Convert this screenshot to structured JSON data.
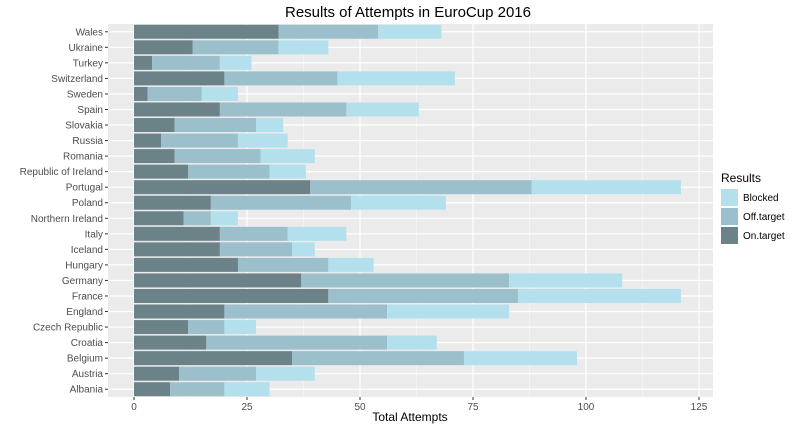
{
  "chart_data": {
    "type": "bar",
    "orientation": "horizontal",
    "stacked": true,
    "title": "Results of Attempts in EuroCup 2016",
    "xlabel": "Total Attempts",
    "ylabel": "",
    "xlim": [
      0,
      125
    ],
    "x_ticks": [
      0,
      25,
      50,
      75,
      100,
      125
    ],
    "grid": true,
    "legend": {
      "title": "Results",
      "position": "right"
    },
    "categories": [
      "Wales",
      "Ukraine",
      "Turkey",
      "Switzerland",
      "Sweden",
      "Spain",
      "Slovakia",
      "Russia",
      "Romania",
      "Republic of Ireland",
      "Portugal",
      "Poland",
      "Northern Ireland",
      "Italy",
      "Iceland",
      "Hungary",
      "Germany",
      "France",
      "England",
      "Czech Republic",
      "Croatia",
      "Belgium",
      "Austria",
      "Albania"
    ],
    "series": [
      {
        "name": "On.target",
        "color": "#6b8289",
        "values": [
          32,
          13,
          4,
          20,
          3,
          19,
          9,
          6,
          9,
          12,
          39,
          17,
          11,
          19,
          19,
          23,
          37,
          43,
          20,
          12,
          16,
          35,
          10,
          8
        ]
      },
      {
        "name": "Off.target",
        "color": "#9bbfcb",
        "values": [
          22,
          19,
          15,
          25,
          12,
          28,
          18,
          17,
          19,
          18,
          49,
          31,
          6,
          15,
          16,
          20,
          46,
          42,
          36,
          8,
          40,
          38,
          17,
          12
        ]
      },
      {
        "name": "Blocked",
        "color": "#b4e0ee",
        "values": [
          14,
          11,
          7,
          26,
          8,
          16,
          6,
          11,
          12,
          8,
          33,
          21,
          6,
          13,
          5,
          10,
          25,
          36,
          27,
          7,
          11,
          25,
          13,
          10
        ]
      }
    ],
    "legend_order": [
      "Blocked",
      "Off.target",
      "On.target"
    ]
  },
  "colors": {
    "panel": "#ebebeb",
    "grid_major": "#ffffff",
    "grid_minor": "#f3f3f3"
  }
}
